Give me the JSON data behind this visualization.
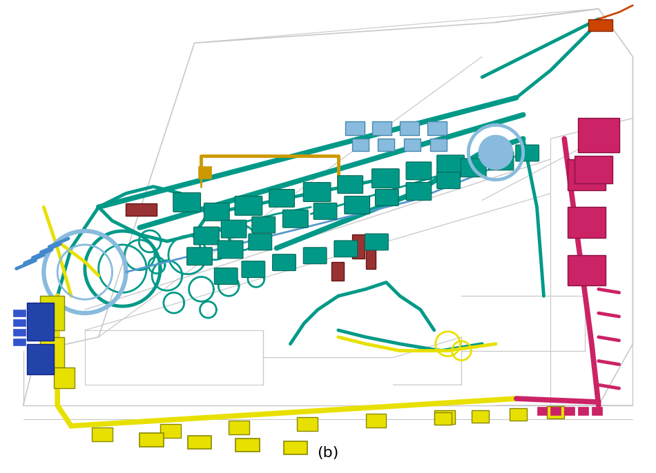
{
  "label_text": "(b)",
  "label_fontsize": 16,
  "background_color": "#ffffff",
  "figure_width": 9.5,
  "figure_height": 6.86,
  "dpi": 100,
  "car_color": "#c8c8cc",
  "car_lw": 1.0,
  "teal": "#009988",
  "yellow": "#e8e000",
  "pink": "#cc2266",
  "blue_light": "#88bbdd",
  "blue_mid": "#5599cc",
  "gold": "#cc9900",
  "dark_red": "#993333",
  "orange_red": "#cc4400",
  "blue_dark": "#2244aa",
  "green_connector": "#008877",
  "lw_thick": 5.5,
  "lw_med": 3.5,
  "lw_thin": 2.0,
  "lw_vthin": 1.2
}
